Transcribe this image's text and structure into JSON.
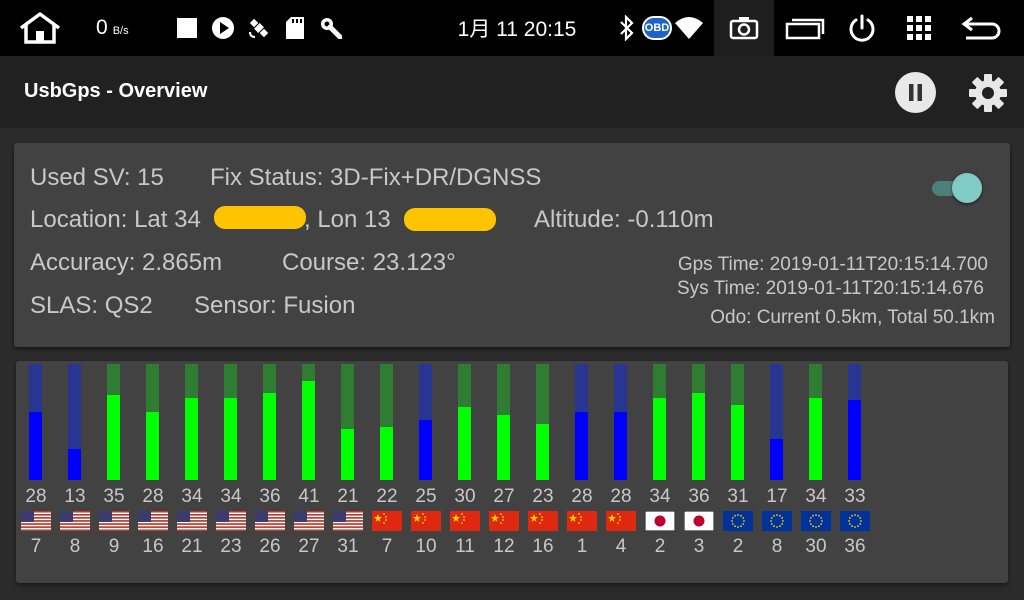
{
  "statusbar": {
    "net_speed": "0",
    "net_unit": "B/s",
    "clock": "1月 11 20:15",
    "obd_label": "OBD"
  },
  "appbar": {
    "title": "UsbGps - Overview"
  },
  "info": {
    "used_sv": "Used SV: 15",
    "fix_status": "Fix Status: 3D-Fix+DR/DGNSS",
    "lat_prefix": "Location: Lat 34",
    "lon_prefix": ", Lon 13",
    "altitude": "Altitude: -0.110m",
    "accuracy": "Accuracy: 2.865m",
    "course": "Course: 23.123°",
    "slas": "SLAS: QS2",
    "sensor": "Sensor: Fusion",
    "gps_time": "Gps Time: 2019-01-11T20:15:14.700",
    "sys_time": "Sys Time: 2019-01-11T20:15:14.676",
    "odo": "Odo: Current 0.5km, Total 50.1km",
    "toggle_on": true
  },
  "colors": {
    "gps_used": "#00ff00",
    "gps_track": "#2e7d32",
    "unused": "#0000ff",
    "unused_track": "#283593",
    "redaction": "#ffc400"
  },
  "satellites": [
    {
      "snr": 28,
      "prn": 7,
      "system": "us",
      "used": false
    },
    {
      "snr": 13,
      "prn": 8,
      "system": "us",
      "used": false
    },
    {
      "snr": 35,
      "prn": 9,
      "system": "us",
      "used": true
    },
    {
      "snr": 28,
      "prn": 16,
      "system": "us",
      "used": true
    },
    {
      "snr": 34,
      "prn": 21,
      "system": "us",
      "used": true
    },
    {
      "snr": 34,
      "prn": 23,
      "system": "us",
      "used": true
    },
    {
      "snr": 36,
      "prn": 26,
      "system": "us",
      "used": true
    },
    {
      "snr": 41,
      "prn": 27,
      "system": "us",
      "used": true
    },
    {
      "snr": 21,
      "prn": 31,
      "system": "us",
      "used": true
    },
    {
      "snr": 22,
      "prn": 7,
      "system": "cn",
      "used": true
    },
    {
      "snr": 25,
      "prn": 10,
      "system": "cn",
      "used": false
    },
    {
      "snr": 30,
      "prn": 11,
      "system": "cn",
      "used": true
    },
    {
      "snr": 27,
      "prn": 12,
      "system": "cn",
      "used": true
    },
    {
      "snr": 23,
      "prn": 16,
      "system": "cn",
      "used": true
    },
    {
      "snr": 28,
      "prn": 1,
      "system": "cn",
      "used": false
    },
    {
      "snr": 28,
      "prn": 4,
      "system": "cn",
      "used": false
    },
    {
      "snr": 34,
      "prn": 2,
      "system": "jp",
      "used": true
    },
    {
      "snr": 36,
      "prn": 3,
      "system": "jp",
      "used": true
    },
    {
      "snr": 31,
      "prn": 2,
      "system": "eu",
      "used": true
    },
    {
      "snr": 17,
      "prn": 8,
      "system": "eu",
      "used": false
    },
    {
      "snr": 34,
      "prn": 30,
      "system": "eu",
      "used": true
    },
    {
      "snr": 33,
      "prn": 36,
      "system": "eu",
      "used": false
    }
  ],
  "snr_max": 48,
  "icons": [
    "home-icon",
    "stop-icon",
    "play-icon",
    "satellite-icon",
    "sd-card-icon",
    "wrench-icon",
    "bluetooth-icon",
    "obd-icon",
    "wifi-icon",
    "camera-icon",
    "windows-icon",
    "power-icon",
    "grid-icon",
    "back-icon",
    "pause-icon",
    "gear-icon"
  ]
}
